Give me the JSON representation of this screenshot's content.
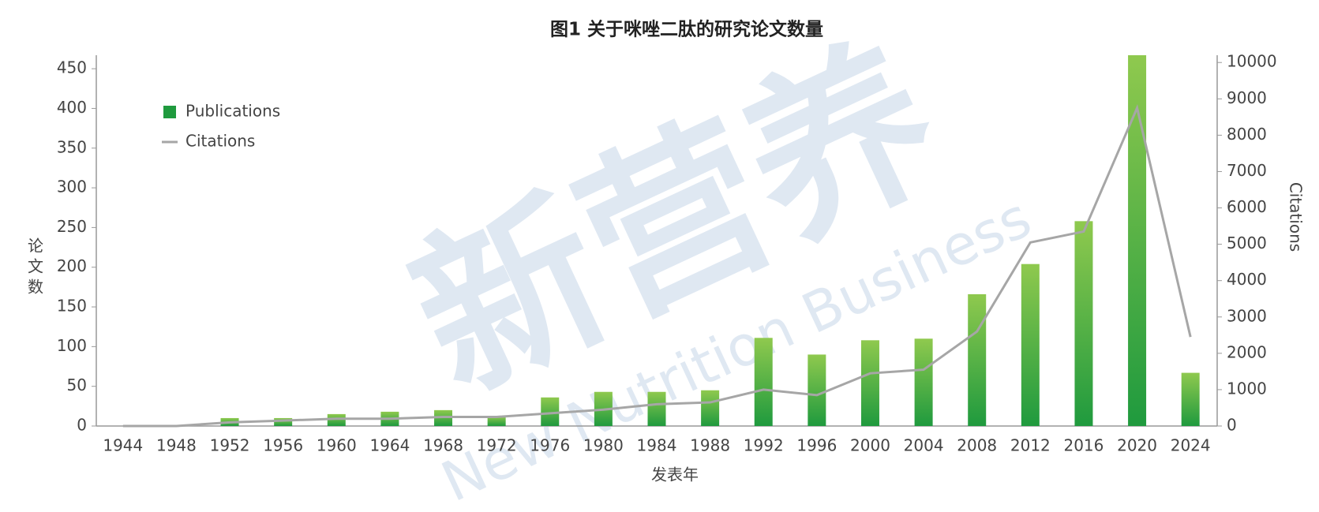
{
  "chart_data": {
    "type": "bar_line",
    "title": "图1  关于咪唑二肽的研究论文数量",
    "x_label": "发表年",
    "y_label": "论文数",
    "y2_label": "Citations",
    "watermark": [
      "新营养",
      "New Nutrition Business"
    ],
    "categories": [
      "1944",
      "1948",
      "1952",
      "1956",
      "1960",
      "1964",
      "1968",
      "1972",
      "1976",
      "1980",
      "1984",
      "1988",
      "1992",
      "1996",
      "2000",
      "2004",
      "2008",
      "2012",
      "2016",
      "2020",
      "2024"
    ],
    "series": [
      {
        "name": "Publications",
        "type": "bar",
        "color": "#1f9a3e",
        "color_top": "#8fc94e",
        "values": [
          0,
          0,
          10,
          10,
          15,
          18,
          20,
          12,
          36,
          43,
          43,
          45,
          111,
          90,
          108,
          110,
          166,
          204,
          258,
          467,
          67
        ]
      },
      {
        "name": "Citations",
        "type": "line",
        "axis": "y2",
        "color": "#a6a6a6",
        "values": [
          0,
          0,
          100,
          150,
          200,
          200,
          250,
          250,
          350,
          450,
          600,
          650,
          1000,
          850,
          1450,
          1550,
          2600,
          5050,
          5350,
          8750,
          2450
        ]
      }
    ],
    "ylim": [
      0,
      467
    ],
    "yticks": [
      0,
      50,
      100,
      150,
      200,
      250,
      300,
      350,
      400,
      450
    ],
    "y2lim": [
      0,
      10200
    ],
    "y2ticks": [
      0,
      1000,
      2000,
      3000,
      4000,
      5000,
      6000,
      7000,
      8000,
      9000,
      10000
    ],
    "legend": "upper left",
    "grid": false
  }
}
